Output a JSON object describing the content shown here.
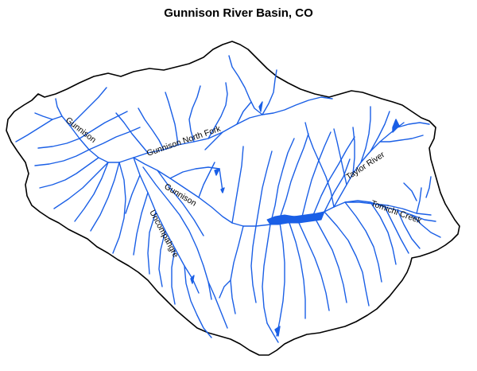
{
  "title": "Gunnison River Basin, CO",
  "labels": {
    "gunnison_west": "Gunnison",
    "gunnison_north_fork": "Gunnison North Fork",
    "gunnison_central": "Gunnison",
    "uncompahgre": "Uncompahgre",
    "taylor_river": "Taylor River",
    "tomichi_creek": "Tomichi Creek"
  },
  "colors": {
    "river": "#1a5fe6",
    "boundary": "#000000",
    "background": "#ffffff"
  }
}
